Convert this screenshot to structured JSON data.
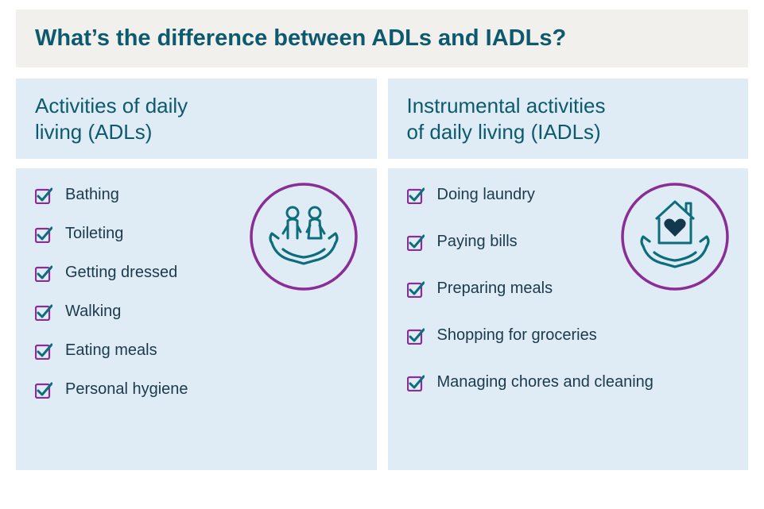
{
  "colors": {
    "title_bg": "#f1f0ed",
    "card_bg": "#dfecf6",
    "heading_text": "#0d5a6e",
    "body_text": "#1b3a4b",
    "check_box": "#8a2d94",
    "check_mark": "#0d6d7a",
    "badge_ring": "#8a2d94",
    "badge_line": "#0d6d7a",
    "badge_heart": "#11384d"
  },
  "title": "What’s the difference between ADLs and IADLs?",
  "left": {
    "heading": "Activities of daily\nliving (ADLs)",
    "items": [
      "Bathing",
      "Toileting",
      "Getting dressed",
      "Walking",
      "Eating meals",
      "Personal hygiene"
    ]
  },
  "right": {
    "heading": "Instrumental activities\nof daily living (IADLs)",
    "items": [
      "Doing laundry",
      "Paying bills",
      "Preparing meals",
      "Shopping for groceries",
      "Managing chores and cleaning"
    ]
  }
}
